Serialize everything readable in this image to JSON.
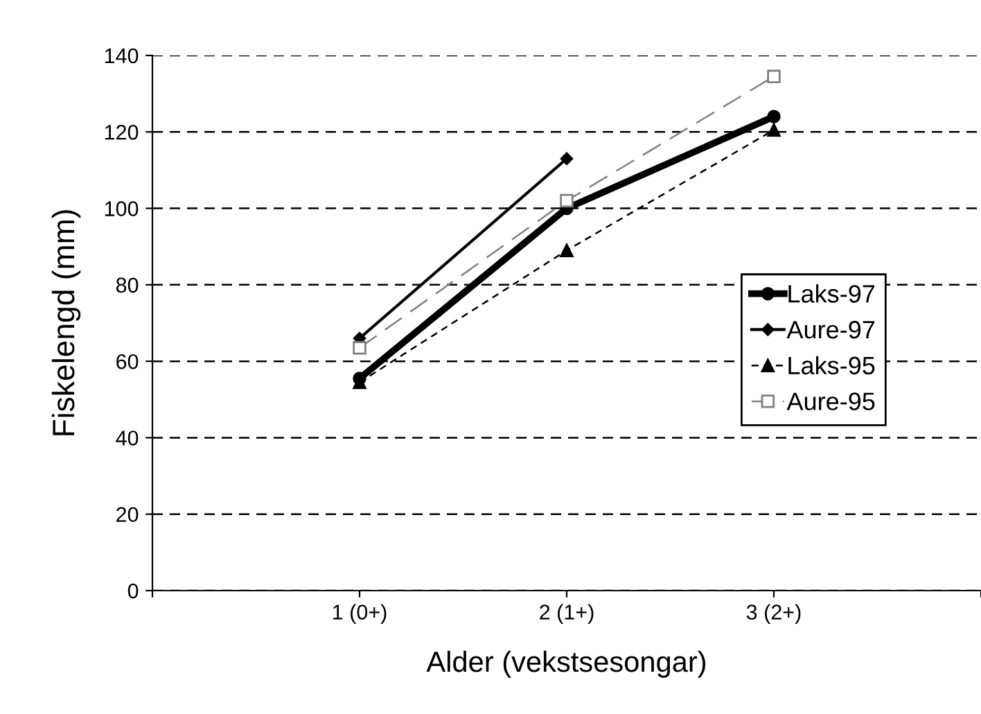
{
  "chart_data": {
    "type": "line",
    "xlabel": "Alder (vekstsesongar)",
    "ylabel": "Fiskelengd (mm)",
    "categories": [
      null,
      "1 (0+)",
      "2 (1+)",
      "3 (2+)",
      null
    ],
    "ylim": [
      0,
      140
    ],
    "yticks": [
      0,
      20,
      40,
      60,
      80,
      100,
      120,
      140
    ],
    "grid": "y",
    "legend": "right",
    "series": [
      {
        "name": "Laks-97",
        "color": "#000000",
        "values": [
          null,
          55.5,
          100,
          124,
          null
        ],
        "marker": "circle",
        "line_style": "solid"
      },
      {
        "name": "Aure-97",
        "color": "#000000",
        "values": [
          null,
          66,
          113,
          null,
          null
        ],
        "marker": "diamond",
        "line_style": "solid"
      },
      {
        "name": "Laks-95",
        "color": "#000000",
        "values": [
          null,
          54.5,
          89,
          120.5,
          null
        ],
        "marker": "triangle",
        "line_style": "dashed"
      },
      {
        "name": "Aure-95",
        "color": "#808080",
        "values": [
          null,
          63.5,
          102,
          134.5,
          null
        ],
        "marker": "square",
        "line_style": "longdash"
      }
    ]
  }
}
